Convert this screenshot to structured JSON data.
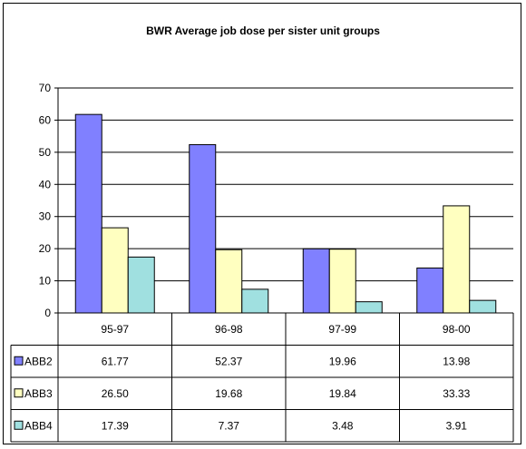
{
  "chart_data": {
    "type": "bar",
    "title": "BWR Average job dose per sister unit groups",
    "categories": [
      "95-97",
      "96-98",
      "97-99",
      "98-00"
    ],
    "ylim": [
      0,
      70
    ],
    "y_ticks": [
      "0",
      "10",
      "20",
      "30",
      "40",
      "50",
      "60",
      "70"
    ],
    "grid": true,
    "legend": "data table rows",
    "series": [
      {
        "name": "ABB2",
        "color": "#8080ff",
        "values": [
          61.77,
          52.37,
          19.96,
          13.98
        ],
        "labels": [
          "61.77",
          "52.37",
          "19.96",
          "13.98"
        ]
      },
      {
        "name": "ABB3",
        "color": "#ffffc0",
        "values": [
          26.5,
          19.68,
          19.84,
          33.33
        ],
        "labels": [
          "26.50",
          "19.68",
          "19.84",
          "33.33"
        ]
      },
      {
        "name": "ABB4",
        "color": "#a0e0e0",
        "values": [
          17.39,
          7.37,
          3.48,
          3.91
        ],
        "labels": [
          "17.39",
          "7.37",
          "3.48",
          "3.91"
        ]
      }
    ]
  }
}
